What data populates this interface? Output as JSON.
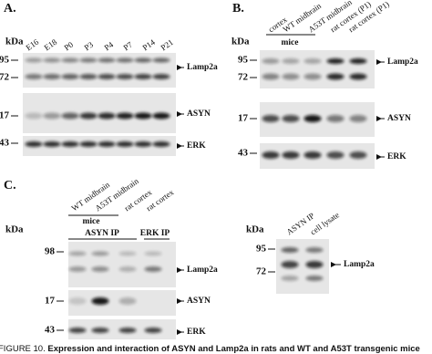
{
  "panels": [
    {
      "label": "A.",
      "unit": "kDa",
      "lanes": [
        "E16",
        "E18",
        "P0",
        "P3",
        "P4",
        "P7",
        "P14",
        "P21"
      ],
      "markers": [
        "95",
        "72",
        "17",
        "43"
      ],
      "targets": [
        "Lamp2a",
        "ASYN",
        "ERK"
      ]
    },
    {
      "label": "B.",
      "unit": "kDa",
      "lanes": [
        "cortex",
        "WT midbrain",
        "A53T midbrain",
        "rat cortex (P1)",
        "rat cortex (P1)"
      ],
      "group": "mice",
      "markers": [
        "95",
        "72",
        "17",
        "43"
      ],
      "targets": [
        "Lamp2a",
        "ASYN",
        "ERK"
      ]
    },
    {
      "label": "C.",
      "unit": "kDa",
      "lanes": [
        "WT midbrain",
        "A53T midbrain",
        "rat cortex",
        "rat cortex"
      ],
      "group": "mice",
      "ip": [
        "ASYN IP",
        "ERK IP"
      ],
      "markers": [
        "98",
        "17",
        "43"
      ],
      "targets": [
        "Lamp2a",
        "ASYN",
        "ERK"
      ]
    },
    {
      "unit": "kDa",
      "lanes": [
        "ASYN IP",
        "cell lysate"
      ],
      "markers": [
        "95",
        "72"
      ],
      "targets": [
        "Lamp2a"
      ]
    }
  ],
  "caption": {
    "figure": "FIGURE 10.",
    "text": "Expression and interaction of ASYN and Lamp2a in rats and WT and A53T transgenic mice"
  }
}
